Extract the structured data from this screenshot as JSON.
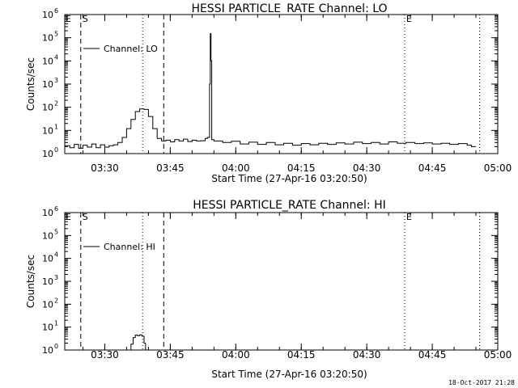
{
  "footer": {
    "stamp": "18-Oct-2017 21:28"
  },
  "chart_data": [
    {
      "type": "line",
      "title": "HESSI PARTICLE_RATE Channel: LO",
      "xlabel": "Start Time (27-Apr-16 03:20:50)",
      "ylabel": "Counts/sec",
      "yscale": "log",
      "ylim": [
        1,
        1000000
      ],
      "xlim": [
        "03:20:50",
        "05:00:00"
      ],
      "x_ticks": [
        "03:30",
        "03:45",
        "04:00",
        "04:15",
        "04:30",
        "04:45",
        "05:00"
      ],
      "y_ticks": [
        "10^0",
        "10^1",
        "10^2",
        "10^3",
        "10^4",
        "10^5",
        "10^6"
      ],
      "legend": {
        "label": "Channel: LO",
        "placement": "top-left"
      },
      "markers": [
        {
          "label": "S",
          "time": "03:24:30",
          "style": "dashed"
        },
        {
          "label": "",
          "time": "03:38:40",
          "style": "dotted"
        },
        {
          "label": "",
          "time": "03:43:30",
          "style": "dashed"
        },
        {
          "label": "E",
          "time": "04:38:40",
          "style": "dotted"
        },
        {
          "label": "",
          "time": "04:55:50",
          "style": "dotted"
        }
      ],
      "series": [
        {
          "name": "Channel: LO",
          "points": [
            [
              "03:20:50",
              2.2
            ],
            [
              "03:22:00",
              1.8
            ],
            [
              "03:23:00",
              2.5
            ],
            [
              "03:24:00",
              1.7
            ],
            [
              "03:25:00",
              2.3
            ],
            [
              "03:26:00",
              1.9
            ],
            [
              "03:27:00",
              2.6
            ],
            [
              "03:28:00",
              1.8
            ],
            [
              "03:29:00",
              2.4
            ],
            [
              "03:30:00",
              1.9
            ],
            [
              "03:31:00",
              2.2
            ],
            [
              "03:32:00",
              2.4
            ],
            [
              "03:33:00",
              3.0
            ],
            [
              "03:34:00",
              5.0
            ],
            [
              "03:35:00",
              12
            ],
            [
              "03:36:00",
              30
            ],
            [
              "03:37:00",
              65
            ],
            [
              "03:38:00",
              85
            ],
            [
              "03:39:00",
              80
            ],
            [
              "03:40:00",
              40
            ],
            [
              "03:41:00",
              12
            ],
            [
              "03:42:00",
              4.5
            ],
            [
              "03:43:00",
              3.5
            ],
            [
              "03:44:00",
              3.8
            ],
            [
              "03:45:00",
              3.2
            ],
            [
              "03:46:00",
              4.0
            ],
            [
              "03:47:00",
              3.5
            ],
            [
              "03:48:00",
              4.2
            ],
            [
              "03:49:00",
              3.3
            ],
            [
              "03:50:00",
              3.8
            ],
            [
              "03:51:00",
              3.5
            ],
            [
              "03:52:00",
              3.6
            ],
            [
              "03:53:00",
              4.5
            ],
            [
              "03:53:30",
              5.0
            ],
            [
              "03:54:00",
              1000
            ],
            [
              "03:54:10",
              150000
            ],
            [
              "03:54:20",
              10000
            ],
            [
              "03:54:30",
              4.0
            ],
            [
              "03:55:00",
              3.5
            ],
            [
              "03:57:00",
              3.0
            ],
            [
              "03:59:00",
              3.4
            ],
            [
              "04:01:00",
              2.6
            ],
            [
              "04:03:00",
              3.1
            ],
            [
              "04:05:00",
              2.5
            ],
            [
              "04:07:00",
              3.0
            ],
            [
              "04:09:00",
              2.4
            ],
            [
              "04:11:00",
              2.8
            ],
            [
              "04:13:00",
              2.3
            ],
            [
              "04:15:00",
              2.7
            ],
            [
              "04:17:00",
              2.4
            ],
            [
              "04:19:00",
              2.8
            ],
            [
              "04:21:00",
              2.5
            ],
            [
              "04:23:00",
              2.9
            ],
            [
              "04:25:00",
              2.6
            ],
            [
              "04:27:00",
              3.1
            ],
            [
              "04:29:00",
              2.7
            ],
            [
              "04:31:00",
              3.0
            ],
            [
              "04:33:00",
              2.6
            ],
            [
              "04:35:00",
              3.2
            ],
            [
              "04:37:00",
              2.8
            ],
            [
              "04:39:00",
              3.0
            ],
            [
              "04:41:00",
              2.7
            ],
            [
              "04:43:00",
              2.9
            ],
            [
              "04:45:00",
              2.6
            ],
            [
              "04:47:00",
              2.8
            ],
            [
              "04:49:00",
              2.5
            ],
            [
              "04:51:00",
              2.7
            ],
            [
              "04:53:00",
              2.3
            ],
            [
              "04:54:00",
              2.0
            ],
            [
              "04:55:00",
              2.0
            ]
          ]
        }
      ]
    },
    {
      "type": "line",
      "title": "HESSI PARTICLE_RATE Channel: HI",
      "xlabel": "Start Time (27-Apr-16 03:20:50)",
      "ylabel": "Counts/sec",
      "yscale": "log",
      "ylim": [
        1,
        1000000
      ],
      "xlim": [
        "03:20:50",
        "05:00:00"
      ],
      "x_ticks": [
        "03:30",
        "03:45",
        "04:00",
        "04:15",
        "04:30",
        "04:45",
        "05:00"
      ],
      "y_ticks": [
        "10^0",
        "10^1",
        "10^2",
        "10^3",
        "10^4",
        "10^5",
        "10^6"
      ],
      "legend": {
        "label": "Channel: HI",
        "placement": "top-left"
      },
      "markers": [
        {
          "label": "S",
          "time": "03:24:30",
          "style": "dashed"
        },
        {
          "label": "",
          "time": "03:38:40",
          "style": "dotted"
        },
        {
          "label": "",
          "time": "03:43:30",
          "style": "dashed"
        },
        {
          "label": "E",
          "time": "04:38:40",
          "style": "dotted"
        },
        {
          "label": "",
          "time": "04:55:50",
          "style": "dotted"
        }
      ],
      "series": [
        {
          "name": "Channel: HI",
          "points": [
            [
              "03:35:30",
              1.0
            ],
            [
              "03:36:00",
              1.8
            ],
            [
              "03:36:30",
              3.5
            ],
            [
              "03:37:00",
              4.5
            ],
            [
              "03:37:30",
              4.2
            ],
            [
              "03:38:00",
              4.6
            ],
            [
              "03:38:30",
              4.0
            ],
            [
              "03:39:00",
              2.0
            ],
            [
              "03:39:20",
              1.0
            ]
          ]
        }
      ]
    }
  ]
}
